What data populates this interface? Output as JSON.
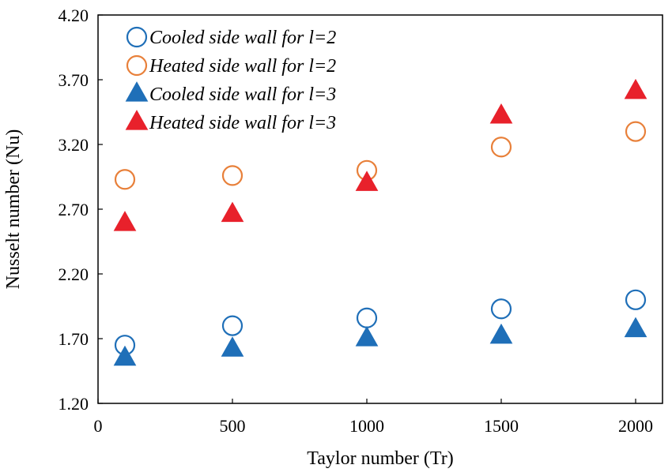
{
  "chart_data": {
    "type": "scatter",
    "xlabel": "Taylor number (Tr)",
    "ylabel": "Nusselt number (Nu)",
    "xlim": [
      0,
      2100
    ],
    "ylim": [
      1.2,
      4.2
    ],
    "x_ticks": [
      0,
      500,
      1000,
      1500,
      2000
    ],
    "x_tick_labels": [
      "0",
      "500",
      "1000",
      "1500",
      "2000"
    ],
    "y_ticks": [
      1.2,
      1.7,
      2.2,
      2.7,
      3.2,
      3.7,
      4.2
    ],
    "y_tick_labels": [
      "1.20",
      "1.70",
      "2.20",
      "2.70",
      "3.20",
      "3.70",
      "4.20"
    ],
    "grid": false,
    "legend_position": "top-left",
    "series": [
      {
        "name": "Cooled side wall for l=2",
        "marker": "open-circle",
        "color": "#1f6fb8",
        "x": [
          100,
          500,
          1000,
          1500,
          2000
        ],
        "y": [
          1.65,
          1.8,
          1.86,
          1.93,
          2.0
        ]
      },
      {
        "name": "Heated side wall for l=2",
        "marker": "open-circle",
        "color": "#e8803a",
        "x": [
          100,
          500,
          1000,
          1500,
          2000
        ],
        "y": [
          2.93,
          2.96,
          3.0,
          3.18,
          3.3
        ]
      },
      {
        "name": "Cooled side wall for l=3",
        "marker": "filled-triangle",
        "color": "#1f6fb8",
        "x": [
          100,
          500,
          1000,
          1500,
          2000
        ],
        "y": [
          1.55,
          1.62,
          1.7,
          1.72,
          1.77
        ]
      },
      {
        "name": "Heated side wall for l=3",
        "marker": "filled-triangle",
        "color": "#e8212b",
        "x": [
          100,
          500,
          1000,
          1500,
          2000
        ],
        "y": [
          2.59,
          2.66,
          2.9,
          3.42,
          3.61
        ]
      }
    ]
  }
}
